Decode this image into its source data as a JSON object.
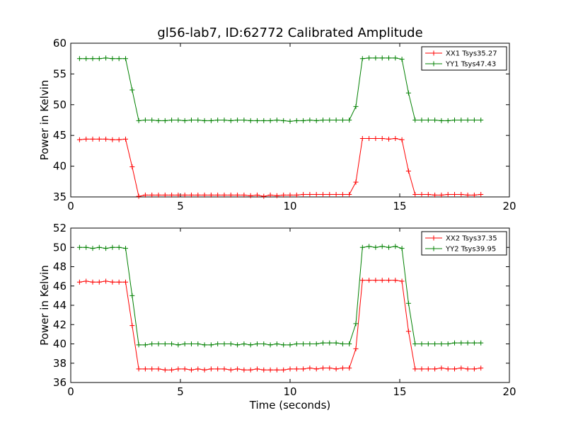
{
  "chart_data": [
    {
      "type": "line",
      "title": "gl56-lab7, ID:62772 Calibrated Amplitude",
      "xlabel": "",
      "ylabel": "Power in Kelvin",
      "xlim": [
        0,
        20
      ],
      "ylim": [
        35,
        60
      ],
      "xticks": [
        "0",
        "5",
        "10",
        "15",
        "20"
      ],
      "yticks": [
        "35",
        "40",
        "45",
        "50",
        "55",
        "60"
      ],
      "grid": false,
      "legend_position": "top-right",
      "x": [
        0.4,
        0.7,
        1.0,
        1.3,
        1.6,
        1.9,
        2.2,
        2.5,
        2.8,
        3.1,
        3.4,
        3.7,
        4.0,
        4.3,
        4.6,
        4.9,
        5.2,
        5.5,
        5.8,
        6.1,
        6.4,
        6.7,
        7.0,
        7.3,
        7.6,
        7.9,
        8.2,
        8.5,
        8.8,
        9.1,
        9.4,
        9.7,
        10.0,
        10.3,
        10.6,
        10.9,
        11.2,
        11.5,
        11.8,
        12.1,
        12.4,
        12.7,
        13.0,
        13.3,
        13.6,
        13.9,
        14.2,
        14.5,
        14.8,
        15.1,
        15.4,
        15.7,
        16.0,
        16.3,
        16.6,
        16.9,
        17.2,
        17.5,
        17.8,
        18.1,
        18.4,
        18.7
      ],
      "series": [
        {
          "name": "XX1 Tsys35.27",
          "color": "#ff0000",
          "values": [
            44.3,
            44.4,
            44.4,
            44.4,
            44.4,
            44.3,
            44.3,
            44.4,
            39.9,
            35.1,
            35.3,
            35.3,
            35.3,
            35.3,
            35.3,
            35.3,
            35.3,
            35.3,
            35.3,
            35.3,
            35.3,
            35.3,
            35.3,
            35.3,
            35.3,
            35.3,
            35.2,
            35.3,
            35.1,
            35.3,
            35.2,
            35.3,
            35.3,
            35.3,
            35.4,
            35.4,
            35.4,
            35.4,
            35.4,
            35.4,
            35.4,
            35.4,
            37.4,
            44.5,
            44.5,
            44.5,
            44.5,
            44.4,
            44.5,
            44.3,
            39.2,
            35.4,
            35.4,
            35.4,
            35.3,
            35.3,
            35.4,
            35.4,
            35.4,
            35.3,
            35.3,
            35.4
          ]
        },
        {
          "name": "YY1 Tsys47.43",
          "color": "#008000",
          "values": [
            57.5,
            57.5,
            57.5,
            57.5,
            57.6,
            57.5,
            57.5,
            57.5,
            52.4,
            47.4,
            47.5,
            47.5,
            47.4,
            47.4,
            47.5,
            47.5,
            47.4,
            47.5,
            47.5,
            47.4,
            47.4,
            47.5,
            47.5,
            47.4,
            47.5,
            47.5,
            47.4,
            47.4,
            47.4,
            47.4,
            47.5,
            47.4,
            47.3,
            47.4,
            47.4,
            47.5,
            47.4,
            47.5,
            47.5,
            47.5,
            47.5,
            47.5,
            49.7,
            57.5,
            57.6,
            57.6,
            57.6,
            57.6,
            57.6,
            57.4,
            51.9,
            47.5,
            47.5,
            47.5,
            47.5,
            47.4,
            47.4,
            47.5,
            47.5,
            47.5,
            47.5,
            47.5
          ]
        }
      ]
    },
    {
      "type": "line",
      "title": "",
      "xlabel": "Time (seconds)",
      "ylabel": "Power in Kelvin",
      "xlim": [
        0,
        20
      ],
      "ylim": [
        36,
        52
      ],
      "xticks": [
        "0",
        "5",
        "10",
        "15",
        "20"
      ],
      "yticks": [
        "36",
        "38",
        "40",
        "42",
        "44",
        "46",
        "48",
        "50",
        "52"
      ],
      "grid": false,
      "legend_position": "top-right",
      "x": [
        0.4,
        0.7,
        1.0,
        1.3,
        1.6,
        1.9,
        2.2,
        2.5,
        2.8,
        3.1,
        3.4,
        3.7,
        4.0,
        4.3,
        4.6,
        4.9,
        5.2,
        5.5,
        5.8,
        6.1,
        6.4,
        6.7,
        7.0,
        7.3,
        7.6,
        7.9,
        8.2,
        8.5,
        8.8,
        9.1,
        9.4,
        9.7,
        10.0,
        10.3,
        10.6,
        10.9,
        11.2,
        11.5,
        11.8,
        12.1,
        12.4,
        12.7,
        13.0,
        13.3,
        13.6,
        13.9,
        14.2,
        14.5,
        14.8,
        15.1,
        15.4,
        15.7,
        16.0,
        16.3,
        16.6,
        16.9,
        17.2,
        17.5,
        17.8,
        18.1,
        18.4,
        18.7
      ],
      "series": [
        {
          "name": "XX2 Tsys37.35",
          "color": "#ff0000",
          "values": [
            46.4,
            46.5,
            46.4,
            46.4,
            46.5,
            46.4,
            46.4,
            46.4,
            41.9,
            37.4,
            37.4,
            37.4,
            37.4,
            37.3,
            37.3,
            37.4,
            37.4,
            37.3,
            37.4,
            37.3,
            37.4,
            37.4,
            37.4,
            37.3,
            37.4,
            37.3,
            37.3,
            37.4,
            37.3,
            37.3,
            37.3,
            37.3,
            37.4,
            37.4,
            37.4,
            37.5,
            37.4,
            37.5,
            37.5,
            37.4,
            37.5,
            37.5,
            39.5,
            46.6,
            46.6,
            46.6,
            46.6,
            46.6,
            46.6,
            46.5,
            41.3,
            37.4,
            37.4,
            37.4,
            37.4,
            37.5,
            37.4,
            37.4,
            37.5,
            37.4,
            37.4,
            37.5
          ]
        },
        {
          "name": "YY2 Tsys39.95",
          "color": "#008000",
          "values": [
            50.0,
            50.0,
            49.9,
            50.0,
            49.9,
            50.0,
            50.0,
            49.9,
            45.0,
            39.9,
            39.9,
            40.0,
            40.0,
            40.0,
            40.0,
            39.9,
            40.0,
            40.0,
            40.0,
            39.9,
            39.9,
            40.0,
            40.0,
            40.0,
            39.9,
            40.0,
            39.9,
            40.0,
            40.0,
            39.9,
            40.0,
            39.9,
            39.9,
            40.0,
            40.0,
            40.0,
            40.0,
            40.1,
            40.1,
            40.1,
            40.0,
            40.0,
            42.1,
            50.0,
            50.1,
            50.0,
            50.1,
            50.0,
            50.1,
            49.9,
            44.2,
            40.0,
            40.0,
            40.0,
            40.0,
            40.0,
            40.0,
            40.1,
            40.1,
            40.1,
            40.1,
            40.1
          ]
        }
      ]
    }
  ]
}
